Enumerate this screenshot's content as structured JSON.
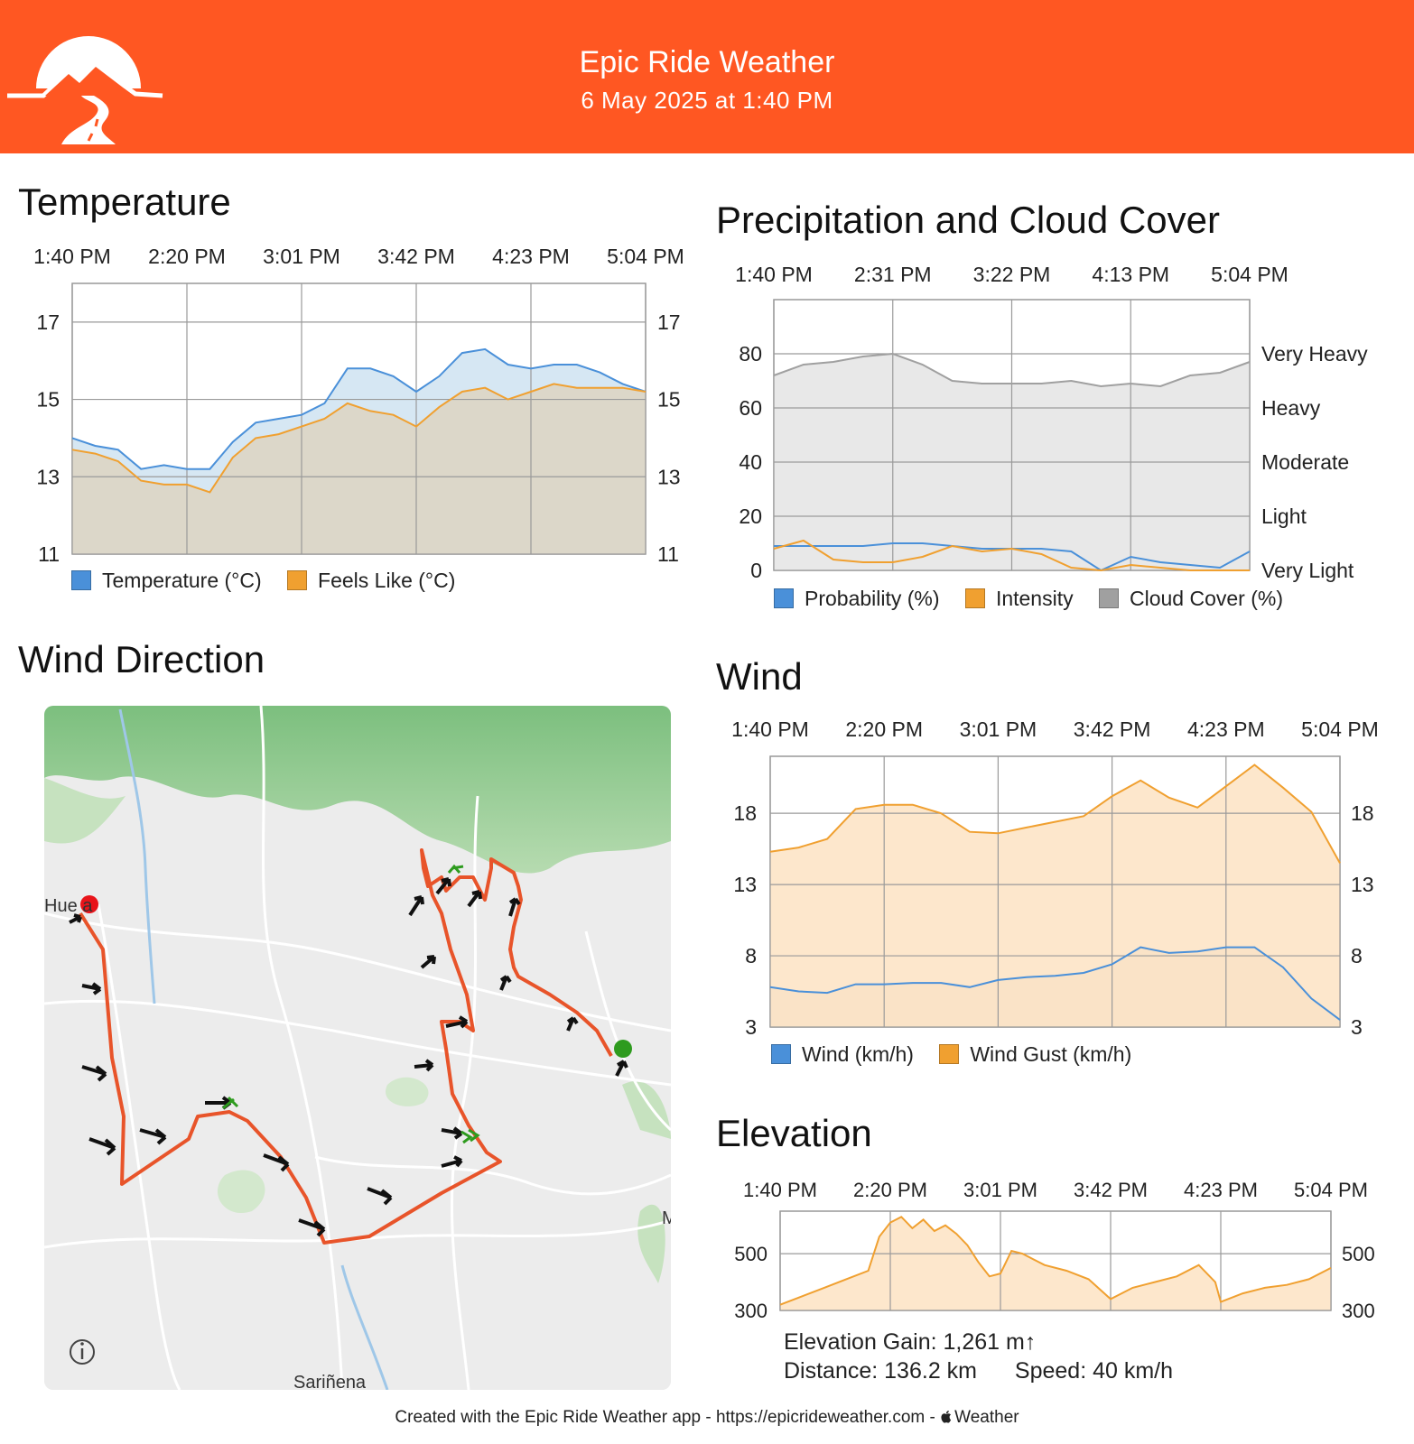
{
  "header": {
    "title": "Epic Ride Weather",
    "subtitle": "6 May 2025 at 1:40 PM",
    "brand_color": "#ff5722"
  },
  "sections": {
    "temperature": "Temperature",
    "precipitation": "Precipitation and Cloud Cover",
    "wind_direction": "Wind Direction",
    "wind": "Wind",
    "elevation": "Elevation"
  },
  "chart_data": [
    {
      "id": "temperature",
      "type": "area",
      "title": "Temperature",
      "x_ticks": [
        "1:40 PM",
        "2:20 PM",
        "3:01 PM",
        "3:42 PM",
        "4:23 PM",
        "5:04 PM"
      ],
      "ylim": [
        11,
        18
      ],
      "y_ticks": [
        11,
        13,
        15,
        17
      ],
      "y_tick_labels": [
        "11",
        "13",
        "15",
        "17"
      ],
      "grid": true,
      "legend_position": "bottom-left",
      "x": [
        0,
        0.2,
        0.4,
        0.6,
        0.8,
        1.0,
        1.2,
        1.4,
        1.6,
        1.8,
        2.0,
        2.2,
        2.4,
        2.6,
        2.8,
        3.0,
        3.2,
        3.4,
        3.6,
        3.8,
        4.0,
        4.2,
        4.4,
        4.6,
        4.8,
        5.0
      ],
      "series": [
        {
          "name": "Temperature (°C)",
          "color": "#4a90d9",
          "values": [
            14.0,
            13.8,
            13.7,
            13.2,
            13.3,
            13.2,
            13.2,
            13.9,
            14.4,
            14.5,
            14.6,
            14.9,
            15.8,
            15.8,
            15.6,
            15.2,
            15.6,
            16.2,
            16.3,
            15.9,
            15.8,
            15.9,
            15.9,
            15.7,
            15.4,
            15.2
          ],
          "fill": "#d2e4f2"
        },
        {
          "name": "Feels Like (°C)",
          "color": "#f0a030",
          "values": [
            13.7,
            13.6,
            13.4,
            12.9,
            12.8,
            12.8,
            12.6,
            13.5,
            14.0,
            14.1,
            14.3,
            14.5,
            14.9,
            14.7,
            14.6,
            14.3,
            14.8,
            15.2,
            15.3,
            15.0,
            15.2,
            15.4,
            15.3,
            15.3,
            15.3,
            15.2
          ],
          "fill": "#ddd5c4"
        }
      ]
    },
    {
      "id": "precipitation",
      "type": "area",
      "title": "Precipitation and Cloud Cover",
      "x_ticks": [
        "1:40 PM",
        "2:31 PM",
        "3:22 PM",
        "4:13 PM",
        "5:04 PM"
      ],
      "ylim": [
        0,
        100
      ],
      "y_ticks": [
        0,
        20,
        40,
        60,
        80
      ],
      "y_tick_labels": [
        "0",
        "20",
        "40",
        "60",
        "80"
      ],
      "right_labels": [
        "Very Light",
        "Light",
        "Moderate",
        "Heavy",
        "Very Heavy"
      ],
      "grid": true,
      "legend_position": "bottom",
      "x": [
        0,
        0.25,
        0.5,
        0.75,
        1.0,
        1.25,
        1.5,
        1.75,
        2.0,
        2.25,
        2.5,
        2.75,
        3.0,
        3.25,
        3.5,
        3.75,
        4.0
      ],
      "series": [
        {
          "name": "Probability (%)",
          "color": "#4a90d9",
          "values": [
            9,
            9,
            9,
            9,
            10,
            10,
            9,
            8,
            8,
            8,
            7,
            0,
            5,
            3,
            2,
            1,
            7
          ],
          "fill": "none"
        },
        {
          "name": "Intensity",
          "color": "#f0a030",
          "values": [
            8,
            11,
            4,
            3,
            3,
            5,
            9,
            7,
            8,
            6,
            1,
            0,
            2,
            1,
            0,
            0,
            0
          ],
          "fill": "none"
        },
        {
          "name": "Cloud Cover (%)",
          "color": "#a0a0a0",
          "values": [
            72,
            76,
            77,
            79,
            80,
            76,
            70,
            69,
            69,
            69,
            70,
            68,
            69,
            68,
            72,
            73,
            77
          ],
          "fill": "#e6e6e6"
        }
      ]
    },
    {
      "id": "wind",
      "type": "area",
      "title": "Wind",
      "x_ticks": [
        "1:40 PM",
        "2:20 PM",
        "3:01 PM",
        "3:42 PM",
        "4:23 PM",
        "5:04 PM"
      ],
      "ylim": [
        3,
        22
      ],
      "y_ticks": [
        3,
        8,
        13,
        18
      ],
      "y_tick_labels": [
        "3",
        "8",
        "13",
        "18"
      ],
      "grid": true,
      "legend_position": "bottom-left",
      "x": [
        0,
        0.25,
        0.5,
        0.75,
        1.0,
        1.25,
        1.5,
        1.75,
        2.0,
        2.25,
        2.5,
        2.75,
        3.0,
        3.25,
        3.5,
        3.75,
        4.0,
        4.25,
        4.5,
        4.75,
        5.0
      ],
      "series": [
        {
          "name": "Wind (km/h)",
          "color": "#4a90d9",
          "values": [
            5.8,
            5.5,
            5.4,
            6.0,
            6.0,
            6.1,
            6.1,
            5.8,
            6.3,
            6.5,
            6.6,
            6.8,
            7.4,
            8.6,
            8.2,
            8.3,
            8.6,
            8.6,
            7.2,
            5.0,
            3.5
          ],
          "fill": "#dcd3c3"
        },
        {
          "name": "Wind Gust (km/h)",
          "color": "#f0a030",
          "values": [
            15.3,
            15.6,
            16.2,
            18.3,
            18.6,
            18.6,
            18.0,
            16.7,
            16.6,
            17.0,
            17.4,
            17.8,
            19.2,
            20.3,
            19.1,
            18.4,
            19.9,
            21.4,
            19.8,
            18.1,
            14.5
          ],
          "fill": "#fde4c6"
        }
      ]
    },
    {
      "id": "elevation",
      "type": "area",
      "title": "Elevation",
      "x_ticks": [
        "1:40 PM",
        "2:20 PM",
        "3:01 PM",
        "3:42 PM",
        "4:23 PM",
        "5:04 PM"
      ],
      "ylim": [
        300,
        650
      ],
      "y_ticks": [
        300,
        500
      ],
      "y_tick_labels": [
        "300",
        "500"
      ],
      "grid": true,
      "x": [
        0,
        0.2,
        0.4,
        0.6,
        0.8,
        0.9,
        1.0,
        1.1,
        1.2,
        1.3,
        1.4,
        1.5,
        1.6,
        1.7,
        1.8,
        1.9,
        2.0,
        2.1,
        2.2,
        2.4,
        2.6,
        2.8,
        3.0,
        3.2,
        3.4,
        3.6,
        3.8,
        3.95,
        4.0,
        4.2,
        4.4,
        4.6,
        4.8,
        5.0
      ],
      "series": [
        {
          "name": "Elevation",
          "color": "#f0a030",
          "values": [
            320,
            350,
            380,
            410,
            440,
            560,
            610,
            630,
            590,
            620,
            580,
            600,
            570,
            530,
            470,
            420,
            430,
            510,
            500,
            460,
            440,
            410,
            340,
            380,
            400,
            420,
            460,
            400,
            330,
            360,
            380,
            390,
            410,
            450
          ],
          "fill": "#fde4c6"
        }
      ]
    }
  ],
  "map": {
    "labels": {
      "start_town": "Hue  a",
      "end_town": "Sariñena",
      "edge_letter": "M"
    },
    "info_icon": "info-icon",
    "start_color": "#2e9b1e",
    "end_color": "#e8141a",
    "route_color": "#e8542a"
  },
  "elevation_stats": {
    "gain": "Elevation Gain: 1,261 m↑",
    "distance": "Distance: 136.2 km",
    "speed": "Speed: 40 km/h"
  },
  "footer": {
    "text": "Created with the Epic Ride Weather app - https://epicrideweather.com - ",
    "weather_label": "Weather",
    "apple_icon": "apple-icon"
  }
}
